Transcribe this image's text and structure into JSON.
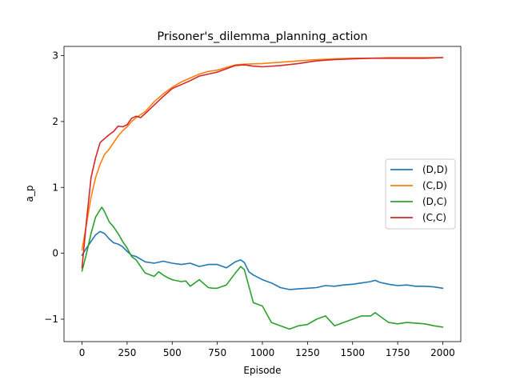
{
  "chart_data": {
    "type": "line",
    "title": "Prisoner's_dilemma_planning_action",
    "xlabel": "Episode",
    "ylabel": "a_p",
    "xlim": [
      -100,
      2100
    ],
    "ylim": [
      -1.34,
      3.14
    ],
    "xticks": [
      0,
      250,
      500,
      750,
      1000,
      1250,
      1500,
      1750,
      2000
    ],
    "yticks": [
      -1,
      0,
      1,
      2,
      3
    ],
    "ytick_labels": [
      "−1",
      "0",
      "1",
      "2",
      "3"
    ],
    "grid": false,
    "legend_position": "center-right",
    "series": [
      {
        "name": "(D,D)",
        "color": "#1f77b4",
        "x": [
          0,
          25,
          50,
          75,
          100,
          125,
          150,
          175,
          200,
          225,
          250,
          275,
          300,
          350,
          400,
          450,
          500,
          550,
          600,
          650,
          700,
          750,
          800,
          850,
          880,
          900,
          925,
          950,
          1000,
          1050,
          1100,
          1150,
          1200,
          1250,
          1300,
          1350,
          1400,
          1450,
          1500,
          1550,
          1600,
          1625,
          1650,
          1700,
          1750,
          1800,
          1850,
          1900,
          1950,
          2000
        ],
        "y": [
          -0.03,
          0.08,
          0.18,
          0.28,
          0.33,
          0.3,
          0.22,
          0.16,
          0.14,
          0.1,
          0.03,
          -0.03,
          -0.05,
          -0.13,
          -0.15,
          -0.12,
          -0.15,
          -0.17,
          -0.15,
          -0.2,
          -0.17,
          -0.17,
          -0.22,
          -0.13,
          -0.1,
          -0.14,
          -0.28,
          -0.33,
          -0.4,
          -0.45,
          -0.52,
          -0.55,
          -0.54,
          -0.53,
          -0.52,
          -0.49,
          -0.5,
          -0.48,
          -0.47,
          -0.45,
          -0.43,
          -0.41,
          -0.44,
          -0.47,
          -0.49,
          -0.48,
          -0.5,
          -0.5,
          -0.51,
          -0.53
        ]
      },
      {
        "name": "(C,D)",
        "color": "#ff7f0e",
        "x": [
          0,
          25,
          50,
          75,
          100,
          125,
          150,
          175,
          200,
          225,
          250,
          275,
          300,
          350,
          400,
          450,
          500,
          550,
          600,
          650,
          700,
          750,
          800,
          850,
          900,
          1000,
          1100,
          1200,
          1300,
          1400,
          1500,
          1600,
          1700,
          1800,
          1900,
          2000
        ],
        "y": [
          0.05,
          0.45,
          0.85,
          1.15,
          1.35,
          1.5,
          1.58,
          1.68,
          1.78,
          1.86,
          1.92,
          2.0,
          2.06,
          2.15,
          2.3,
          2.42,
          2.52,
          2.6,
          2.66,
          2.72,
          2.76,
          2.78,
          2.82,
          2.86,
          2.87,
          2.88,
          2.9,
          2.92,
          2.94,
          2.95,
          2.96,
          2.96,
          2.97,
          2.97,
          2.97,
          2.97
        ]
      },
      {
        "name": "(D,C)",
        "color": "#2ca02c",
        "x": [
          0,
          25,
          50,
          75,
          100,
          110,
          125,
          150,
          175,
          200,
          225,
          250,
          275,
          300,
          325,
          350,
          400,
          425,
          450,
          475,
          500,
          550,
          575,
          600,
          650,
          700,
          725,
          750,
          800,
          850,
          880,
          900,
          925,
          950,
          1000,
          1050,
          1100,
          1150,
          1200,
          1250,
          1300,
          1350,
          1400,
          1450,
          1500,
          1550,
          1600,
          1625,
          1650,
          1700,
          1750,
          1800,
          1850,
          1900,
          1950,
          2000
        ],
        "y": [
          -0.27,
          0.0,
          0.3,
          0.55,
          0.66,
          0.7,
          0.63,
          0.48,
          0.4,
          0.3,
          0.18,
          0.08,
          -0.05,
          -0.1,
          -0.2,
          -0.3,
          -0.35,
          -0.28,
          -0.33,
          -0.37,
          -0.4,
          -0.43,
          -0.42,
          -0.5,
          -0.4,
          -0.52,
          -0.53,
          -0.53,
          -0.48,
          -0.3,
          -0.2,
          -0.25,
          -0.5,
          -0.75,
          -0.8,
          -1.05,
          -1.1,
          -1.15,
          -1.1,
          -1.08,
          -1.0,
          -0.95,
          -1.1,
          -1.05,
          -1.0,
          -0.95,
          -0.95,
          -0.9,
          -0.95,
          -1.05,
          -1.07,
          -1.05,
          -1.06,
          -1.07,
          -1.1,
          -1.12
        ]
      },
      {
        "name": "(C,C)",
        "color": "#d62728",
        "x": [
          0,
          25,
          50,
          75,
          100,
          125,
          150,
          175,
          200,
          225,
          250,
          275,
          300,
          325,
          350,
          400,
          450,
          500,
          550,
          600,
          650,
          700,
          750,
          800,
          850,
          900,
          950,
          1000,
          1100,
          1200,
          1300,
          1400,
          1500,
          1600,
          1700,
          1800,
          1900,
          2000
        ],
        "y": [
          -0.22,
          0.5,
          1.15,
          1.45,
          1.68,
          1.74,
          1.8,
          1.85,
          1.93,
          1.92,
          1.95,
          2.05,
          2.08,
          2.06,
          2.12,
          2.25,
          2.38,
          2.5,
          2.56,
          2.62,
          2.69,
          2.72,
          2.75,
          2.8,
          2.85,
          2.86,
          2.84,
          2.83,
          2.85,
          2.88,
          2.92,
          2.94,
          2.95,
          2.96,
          2.96,
          2.96,
          2.96,
          2.97
        ]
      }
    ]
  }
}
